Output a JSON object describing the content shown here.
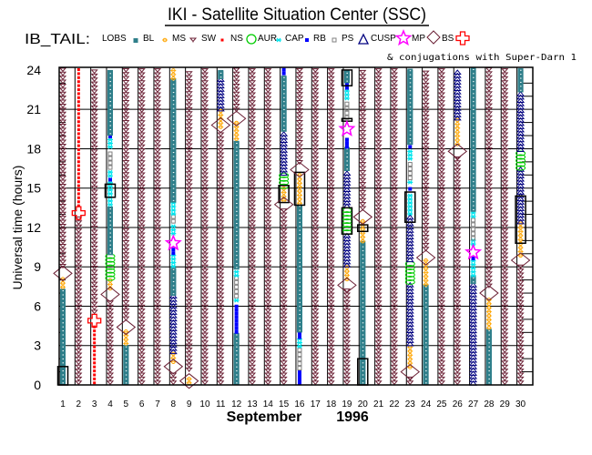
{
  "header": {
    "title": "IKI - Satellite Situation Center (SSC)",
    "satellite_label": "IB_TAIL:",
    "conjugation_note": "& conjugations with Super-Darn 1"
  },
  "legend": [
    {
      "label": "LOBS",
      "symbol": null
    },
    {
      "label": "BL",
      "symbol": "BL"
    },
    {
      "label": "MS",
      "symbol": "MS"
    },
    {
      "label": "SW",
      "symbol": "SW"
    },
    {
      "label": "NS",
      "symbol": "NS"
    },
    {
      "label": "AUR",
      "symbol": "AUR"
    },
    {
      "label": "CAP",
      "symbol": "CAP"
    },
    {
      "label": "RB",
      "symbol": "RB"
    },
    {
      "label": "PS",
      "symbol": "PS"
    },
    {
      "label": "CUSP",
      "symbol": "CUSP"
    },
    {
      "label": "MP",
      "symbol": "MP"
    },
    {
      "label": "BS",
      "symbol": "BS"
    },
    {
      "label": "",
      "symbol": "cross"
    }
  ],
  "colors": {
    "BL": "#2f7f8a",
    "MS": "#ffa500",
    "SW": "#6b2035",
    "NS": "#ff0000",
    "AUR": "#00cc00",
    "CAP": "#00e5ee",
    "RB": "#0000ff",
    "PS": "#808080",
    "CUSP": "#000080",
    "MP": "#ff00ff",
    "BS": "#6b2035",
    "cross": "#ff0000",
    "box": "#000000"
  },
  "chart_data": {
    "type": "timeline",
    "title": "IKI - Satellite Situation Center (SSC)",
    "xlabel_month": "September",
    "xlabel_year": "1996",
    "ylabel": "Universal time (hours)",
    "ylim": [
      0,
      24
    ],
    "y_ticks": [
      "0",
      "3",
      "6",
      "9",
      "12",
      "15",
      "18",
      "21",
      "24"
    ],
    "x_ticks": [
      "1",
      "2",
      "3",
      "4",
      "5",
      "6",
      "7",
      "8",
      "9",
      "10",
      "11",
      "12",
      "13",
      "14",
      "15",
      "16",
      "17",
      "18",
      "19",
      "20",
      "21",
      "22",
      "23",
      "24",
      "25",
      "26",
      "27",
      "28",
      "29",
      "30"
    ],
    "grid": true,
    "days": [
      {
        "day": 1,
        "segments": [
          [
            "BL",
            0,
            7.3
          ],
          [
            "MS",
            7.3,
            8.3
          ],
          [
            "SW",
            8.9,
            24
          ]
        ],
        "points": [
          [
            "BS",
            8.5
          ]
        ],
        "boxes": [
          [
            0,
            1.4
          ]
        ]
      },
      {
        "day": 2,
        "segments": [
          [
            "SW",
            0,
            12.7
          ],
          [
            "NS",
            13.5,
            24
          ]
        ],
        "points": [
          [
            "cross",
            13.1
          ]
        ],
        "boxes": []
      },
      {
        "day": 3,
        "segments": [
          [
            "NS",
            0,
            4.6
          ],
          [
            "SW",
            5.4,
            24
          ]
        ],
        "points": [
          [
            "cross",
            4.9
          ]
        ],
        "boxes": []
      },
      {
        "day": 4,
        "segments": [
          [
            "SW",
            0,
            6.5
          ],
          [
            "MS",
            7.2,
            8
          ],
          [
            "AUR",
            8,
            9.9
          ],
          [
            "BL",
            9.9,
            13.6
          ],
          [
            "CAP",
            13.6,
            15.4
          ],
          [
            "RB",
            15.5,
            15.7
          ],
          [
            "CAP",
            15.8,
            16.3
          ],
          [
            "PS",
            16.4,
            17.9
          ],
          [
            "CAP",
            18,
            18.7
          ],
          [
            "RB",
            18.8,
            19
          ],
          [
            "BL",
            19,
            24
          ]
        ],
        "points": [
          [
            "BS",
            6.9
          ]
        ],
        "boxes": [
          [
            14.3,
            15.3
          ]
        ]
      },
      {
        "day": 5,
        "segments": [
          [
            "BL",
            0,
            3
          ],
          [
            "MS",
            3,
            4.2
          ],
          [
            "SW",
            4.9,
            24
          ]
        ],
        "points": [
          [
            "BS",
            4.4
          ]
        ],
        "boxes": []
      },
      {
        "day": 6,
        "segments": [
          [
            "SW",
            0,
            24
          ]
        ],
        "points": [],
        "boxes": []
      },
      {
        "day": 7,
        "segments": [
          [
            "SW",
            0,
            24
          ]
        ],
        "points": [],
        "boxes": []
      },
      {
        "day": 8,
        "segments": [
          [
            "SW",
            0,
            1
          ],
          [
            "MS",
            1.6,
            2.4
          ],
          [
            "CUSP",
            2.4,
            6.8
          ],
          [
            "BL",
            6.8,
            8.9
          ],
          [
            "CAP",
            8.9,
            9.9
          ],
          [
            "RB",
            9.9,
            10.3
          ],
          [
            "CAP",
            11.4,
            12.3
          ],
          [
            "PS",
            12.3,
            12.9
          ],
          [
            "CAP",
            12.9,
            13.9
          ],
          [
            "BL",
            13.9,
            23.2
          ],
          [
            "MS",
            23.2,
            24
          ]
        ],
        "points": [
          [
            "BS",
            1.4
          ],
          [
            "MP",
            10.8
          ]
        ],
        "boxes": []
      },
      {
        "day": 9,
        "segments": [
          [
            "MS",
            0,
            0.6
          ],
          [
            "SW",
            1,
            24
          ]
        ],
        "points": [
          [
            "BS",
            0.3
          ]
        ],
        "boxes": []
      },
      {
        "day": 10,
        "segments": [
          [
            "SW",
            0,
            24
          ]
        ],
        "points": [],
        "boxes": []
      },
      {
        "day": 11,
        "segments": [
          [
            "SW",
            0,
            19.2
          ],
          [
            "MS",
            19.5,
            20.9
          ],
          [
            "CUSP",
            20.9,
            23.3
          ],
          [
            "BL",
            23.3,
            24
          ]
        ],
        "points": [
          [
            "BS",
            19.8
          ]
        ],
        "boxes": []
      },
      {
        "day": 12,
        "segments": [
          [
            "BL",
            0,
            3.9
          ],
          [
            "RB",
            3.9,
            6.2
          ],
          [
            "CAP",
            6.3,
            6.6
          ],
          [
            "PS",
            6.6,
            8.2
          ],
          [
            "CAP",
            8.2,
            8.8
          ],
          [
            "BL",
            8.8,
            18.6
          ],
          [
            "MS",
            18.6,
            20
          ],
          [
            "SW",
            20.8,
            24
          ]
        ],
        "points": [
          [
            "BS",
            20.3
          ]
        ],
        "boxes": []
      },
      {
        "day": 13,
        "segments": [
          [
            "SW",
            0,
            24
          ]
        ],
        "points": [],
        "boxes": []
      },
      {
        "day": 14,
        "segments": [
          [
            "SW",
            0,
            24
          ]
        ],
        "points": [],
        "boxes": []
      },
      {
        "day": 15,
        "segments": [
          [
            "SW",
            0,
            13.3
          ],
          [
            "MS",
            13.9,
            15
          ],
          [
            "AUR",
            15,
            16
          ],
          [
            "CUSP",
            16,
            19.3
          ],
          [
            "BL",
            19.3,
            23.5
          ],
          [
            "RB",
            23.6,
            24
          ]
        ],
        "points": [
          [
            "BS",
            13.75
          ]
        ],
        "boxes": [
          [
            13.9,
            15.2
          ]
        ]
      },
      {
        "day": 16,
        "segments": [
          [
            "RB",
            0,
            1.1
          ],
          [
            "PS",
            1.1,
            2.8
          ],
          [
            "CAP",
            2.8,
            3.5
          ],
          [
            "RB",
            3.5,
            4
          ],
          [
            "BL",
            4,
            13.7
          ],
          [
            "MS",
            13.7,
            16.1
          ],
          [
            "SW",
            16.8,
            24
          ]
        ],
        "points": [
          [
            "BS",
            16.4
          ]
        ],
        "boxes": [
          [
            13.7,
            16.2
          ]
        ]
      },
      {
        "day": 17,
        "segments": [
          [
            "SW",
            0,
            24
          ]
        ],
        "points": [],
        "boxes": []
      },
      {
        "day": 18,
        "segments": [
          [
            "SW",
            0,
            24
          ]
        ],
        "points": [],
        "boxes": []
      },
      {
        "day": 19,
        "segments": [
          [
            "SW",
            0,
            7.2
          ],
          [
            "MS",
            7.9,
            9
          ],
          [
            "CUSP",
            9,
            11.5
          ],
          [
            "AUR",
            11.5,
            13.5
          ],
          [
            "CUSP",
            13.5,
            16.2
          ],
          [
            "BL",
            16.3,
            18
          ],
          [
            "RB",
            18,
            18.8
          ],
          [
            "PS",
            20.2,
            21.7
          ],
          [
            "CAP",
            21.7,
            22.5
          ],
          [
            "RB",
            22.5,
            23
          ],
          [
            "BL",
            23,
            24
          ]
        ],
        "points": [
          [
            "BS",
            7.6
          ],
          [
            "MP",
            19.5
          ]
        ],
        "boxes": [
          [
            11.5,
            13.5
          ],
          [
            22.8,
            24
          ],
          [
            20.1,
            20.3
          ]
        ]
      },
      {
        "day": 20,
        "segments": [
          [
            "BL",
            0,
            10.8
          ],
          [
            "MS",
            10.8,
            12.5
          ],
          [
            "SW",
            13.3,
            24
          ]
        ],
        "points": [
          [
            "BS",
            12.8
          ]
        ],
        "boxes": [
          [
            0,
            2
          ],
          [
            11.7,
            12.2
          ]
        ]
      },
      {
        "day": 21,
        "segments": [
          [
            "SW",
            0,
            24
          ]
        ],
        "points": [],
        "boxes": []
      },
      {
        "day": 22,
        "segments": [
          [
            "SW",
            0,
            24
          ]
        ],
        "points": [],
        "boxes": []
      },
      {
        "day": 23,
        "segments": [
          [
            "SW",
            0,
            0.6
          ],
          [
            "MS",
            1.2,
            3
          ],
          [
            "CUSP",
            3,
            7.7
          ],
          [
            "AUR",
            7.7,
            9.4
          ],
          [
            "CUSP",
            9.4,
            12.9
          ],
          [
            "CAP",
            12.9,
            14.6
          ],
          [
            "RB",
            14.8,
            15.1
          ],
          [
            "CAP",
            15.3,
            15.6
          ],
          [
            "PS",
            15.6,
            17
          ],
          [
            "CAP",
            17.1,
            17.8
          ],
          [
            "RB",
            18,
            18.3
          ],
          [
            "BL",
            18.3,
            24
          ]
        ],
        "points": [
          [
            "BS",
            1.0
          ]
        ],
        "boxes": [
          [
            12.4,
            14.7
          ]
        ]
      },
      {
        "day": 24,
        "segments": [
          [
            "BL",
            0,
            7.5
          ],
          [
            "MS",
            7.5,
            9.5
          ],
          [
            "SW",
            10.2,
            24
          ]
        ],
        "points": [
          [
            "BS",
            9.7
          ]
        ],
        "boxes": []
      },
      {
        "day": 25,
        "segments": [
          [
            "SW",
            0,
            24
          ]
        ],
        "points": [],
        "boxes": []
      },
      {
        "day": 26,
        "segments": [
          [
            "SW",
            0,
            17.3
          ],
          [
            "MS",
            18.2,
            20.2
          ],
          [
            "CUSP",
            20.2,
            24
          ]
        ],
        "points": [
          [
            "BS",
            17.8
          ]
        ],
        "boxes": []
      },
      {
        "day": 27,
        "segments": [
          [
            "CUSP",
            0,
            7.7
          ],
          [
            "BL",
            7.7,
            8.2
          ],
          [
            "CAP",
            8.2,
            9.5
          ],
          [
            "RB",
            9.5,
            9.7
          ],
          [
            "CAP",
            10.6,
            11
          ],
          [
            "PS",
            11,
            12.7
          ],
          [
            "CAP",
            12.7,
            13.2
          ],
          [
            "BL",
            13.2,
            24
          ]
        ],
        "points": [
          [
            "MP",
            10.1
          ]
        ],
        "boxes": []
      },
      {
        "day": 28,
        "segments": [
          [
            "BL",
            0,
            4.2
          ],
          [
            "MS",
            4.2,
            6.7
          ],
          [
            "SW",
            7.4,
            24
          ]
        ],
        "points": [
          [
            "BS",
            7.0
          ]
        ],
        "boxes": []
      },
      {
        "day": 29,
        "segments": [
          [
            "SW",
            0,
            24
          ]
        ],
        "points": [],
        "boxes": []
      },
      {
        "day": 30,
        "segments": [
          [
            "SW",
            0,
            9.2
          ],
          [
            "MS",
            9.7,
            12.3
          ],
          [
            "CUSP",
            12.3,
            16.4
          ],
          [
            "AUR",
            16.4,
            17.8
          ],
          [
            "CUSP",
            17.8,
            22.3
          ],
          [
            "BL",
            22.3,
            24
          ]
        ],
        "points": [
          [
            "BS",
            9.5
          ]
        ],
        "boxes": [
          [
            10.8,
            14.4
          ]
        ]
      }
    ]
  }
}
